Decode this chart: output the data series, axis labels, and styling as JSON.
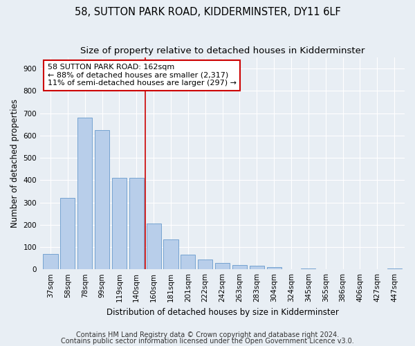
{
  "title": "58, SUTTON PARK ROAD, KIDDERMINSTER, DY11 6LF",
  "subtitle": "Size of property relative to detached houses in Kidderminster",
  "xlabel": "Distribution of detached houses by size in Kidderminster",
  "ylabel": "Number of detached properties",
  "categories": [
    "37sqm",
    "58sqm",
    "78sqm",
    "99sqm",
    "119sqm",
    "140sqm",
    "160sqm",
    "181sqm",
    "201sqm",
    "222sqm",
    "242sqm",
    "263sqm",
    "283sqm",
    "304sqm",
    "324sqm",
    "345sqm",
    "365sqm",
    "386sqm",
    "406sqm",
    "427sqm",
    "447sqm"
  ],
  "values": [
    70,
    320,
    680,
    625,
    410,
    410,
    205,
    135,
    65,
    45,
    30,
    20,
    15,
    10,
    0,
    5,
    0,
    0,
    0,
    0,
    5
  ],
  "bar_color": "#b8ceea",
  "bar_edge_color": "#6699cc",
  "vline_x": 5.5,
  "vline_color": "#cc0000",
  "annotation_line1": "58 SUTTON PARK ROAD: 162sqm",
  "annotation_line2": "← 88% of detached houses are smaller (2,317)",
  "annotation_line3": "11% of semi-detached houses are larger (297) →",
  "annotation_box_color": "#ffffff",
  "annotation_box_edge": "#cc0000",
  "ylim": [
    0,
    950
  ],
  "yticks": [
    0,
    100,
    200,
    300,
    400,
    500,
    600,
    700,
    800,
    900
  ],
  "footer1": "Contains HM Land Registry data © Crown copyright and database right 2024.",
  "footer2": "Contains public sector information licensed under the Open Government Licence v3.0.",
  "bg_color": "#e8eef4",
  "plot_bg_color": "#e8eef4",
  "title_fontsize": 10.5,
  "subtitle_fontsize": 9.5,
  "label_fontsize": 8.5,
  "tick_fontsize": 7.5,
  "annotation_fontsize": 8,
  "footer_fontsize": 7
}
